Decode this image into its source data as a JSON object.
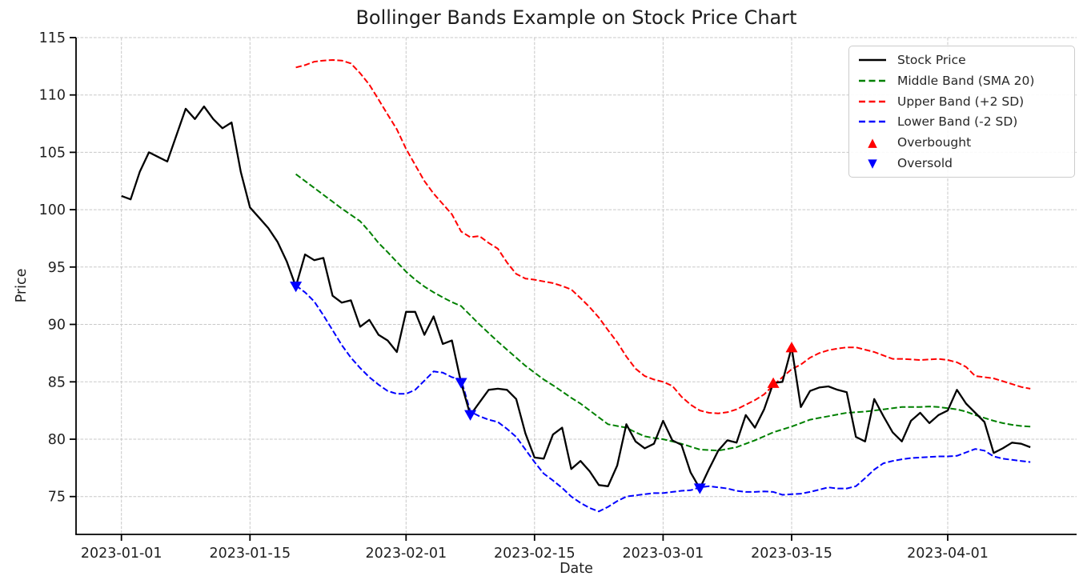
{
  "title": "Bollinger Bands Example on Stock Price Chart",
  "axes": {
    "x_label": "Date",
    "y_label": "Price",
    "y_ticks": [
      75,
      80,
      85,
      90,
      95,
      100,
      105,
      110,
      115
    ],
    "x_ticks": [
      {
        "day": 0,
        "label": "2023-01-01"
      },
      {
        "day": 14,
        "label": "2023-01-15"
      },
      {
        "day": 31,
        "label": "2023-02-01"
      },
      {
        "day": 45,
        "label": "2023-02-15"
      },
      {
        "day": 59,
        "label": "2023-03-01"
      },
      {
        "day": 73,
        "label": "2023-03-15"
      },
      {
        "day": 90,
        "label": "2023-04-01"
      }
    ]
  },
  "colors": {
    "stock": "#000000",
    "middle_band": "#008000",
    "upper_band": "#ff0000",
    "lower_band": "#0000ff",
    "overbought_marker": "#ff0000",
    "oversold_marker": "#0000ff",
    "grid": "#c8c8c8",
    "spine": "#000000",
    "text": "#1f1f1f"
  },
  "legend": {
    "items": [
      {
        "label": "Stock Price",
        "type": "line-solid",
        "color": "#000000"
      },
      {
        "label": "Middle Band (SMA 20)",
        "type": "line-dashed",
        "color": "#008000"
      },
      {
        "label": "Upper Band (+2 SD)",
        "type": "line-dashed",
        "color": "#ff0000"
      },
      {
        "label": "Lower Band (-2 SD)",
        "type": "line-dashed",
        "color": "#0000ff"
      },
      {
        "label": "Overbought",
        "type": "triangle-up",
        "color": "#ff0000"
      },
      {
        "label": "Oversold",
        "type": "triangle-down",
        "color": "#0000ff"
      }
    ],
    "glyphs": {
      "triangle_up": "▲",
      "triangle_down": "▼"
    }
  },
  "chart_data": {
    "type": "line",
    "title": "Bollinger Bands Example on Stock Price Chart",
    "xlabel": "Date",
    "ylabel": "Price",
    "ylim": [
      71.7,
      115.0
    ],
    "grid": true,
    "legend_position": "upper right",
    "x_tick_labels": [
      "2023-01-01",
      "2023-01-15",
      "2023-02-01",
      "2023-02-15",
      "2023-03-01",
      "2023-03-15",
      "2023-04-01"
    ],
    "dates": [
      "2023-01-01",
      "2023-01-02",
      "2023-01-03",
      "2023-01-04",
      "2023-01-05",
      "2023-01-06",
      "2023-01-07",
      "2023-01-08",
      "2023-01-09",
      "2023-01-10",
      "2023-01-11",
      "2023-01-12",
      "2023-01-13",
      "2023-01-14",
      "2023-01-15",
      "2023-01-16",
      "2023-01-17",
      "2023-01-18",
      "2023-01-19",
      "2023-01-20",
      "2023-01-21",
      "2023-01-22",
      "2023-01-23",
      "2023-01-24",
      "2023-01-25",
      "2023-01-26",
      "2023-01-27",
      "2023-01-28",
      "2023-01-29",
      "2023-01-30",
      "2023-01-31",
      "2023-02-01",
      "2023-02-02",
      "2023-02-03",
      "2023-02-04",
      "2023-02-05",
      "2023-02-06",
      "2023-02-07",
      "2023-02-08",
      "2023-02-09",
      "2023-02-10",
      "2023-02-11",
      "2023-02-12",
      "2023-02-13",
      "2023-02-14",
      "2023-02-15",
      "2023-02-16",
      "2023-02-17",
      "2023-02-18",
      "2023-02-19",
      "2023-02-20",
      "2023-02-21",
      "2023-02-22",
      "2023-02-23",
      "2023-02-24",
      "2023-02-25",
      "2023-02-26",
      "2023-02-27",
      "2023-02-28",
      "2023-03-01",
      "2023-03-02",
      "2023-03-03",
      "2023-03-04",
      "2023-03-05",
      "2023-03-06",
      "2023-03-07",
      "2023-03-08",
      "2023-03-09",
      "2023-03-10",
      "2023-03-11",
      "2023-03-12",
      "2023-03-13",
      "2023-03-14",
      "2023-03-15",
      "2023-03-16",
      "2023-03-17",
      "2023-03-18",
      "2023-03-19",
      "2023-03-20",
      "2023-03-21",
      "2023-03-22",
      "2023-03-23",
      "2023-03-24",
      "2023-03-25",
      "2023-03-26",
      "2023-03-27",
      "2023-03-28",
      "2023-03-29",
      "2023-03-30",
      "2023-03-31",
      "2023-04-01",
      "2023-04-02",
      "2023-04-03",
      "2023-04-04",
      "2023-04-05",
      "2023-04-06",
      "2023-04-07",
      "2023-04-08",
      "2023-04-09",
      "2023-04-10"
    ],
    "series": [
      {
        "name": "Stock Price",
        "color": "#000000",
        "style": "solid",
        "linewidth": 2.3,
        "start_day": 0,
        "values": [
          101.2,
          100.9,
          103.3,
          105.0,
          104.6,
          104.2,
          106.5,
          108.8,
          107.9,
          109.0,
          107.9,
          107.1,
          107.6,
          103.3,
          100.2,
          99.3,
          98.4,
          97.2,
          95.5,
          93.3,
          96.1,
          95.6,
          95.8,
          92.5,
          91.9,
          92.1,
          89.8,
          90.4,
          89.1,
          88.6,
          87.6,
          91.1,
          91.1,
          89.1,
          90.7,
          88.3,
          88.6,
          84.9,
          82.1,
          83.2,
          84.3,
          84.4,
          84.3,
          83.5,
          80.5,
          78.4,
          78.3,
          80.4,
          81.0,
          77.4,
          78.1,
          77.2,
          76.0,
          75.9,
          77.7,
          81.3,
          79.8,
          79.2,
          79.6,
          81.6,
          79.9,
          79.5,
          77.1,
          75.7,
          77.4,
          79.0,
          79.9,
          79.7,
          82.1,
          81.0,
          82.6,
          84.9,
          85.0,
          88.0,
          82.8,
          84.2,
          84.5,
          84.6,
          84.3,
          84.1,
          80.2,
          79.8,
          83.5,
          82.0,
          80.6,
          79.8,
          81.6,
          82.3,
          81.4,
          82.1,
          82.5,
          84.3,
          83.1,
          82.3,
          81.5,
          78.8,
          79.2,
          79.7,
          79.6,
          79.3
        ]
      },
      {
        "name": "Middle Band (SMA 20)",
        "color": "#008000",
        "style": "dashed",
        "linewidth": 2,
        "start_day": 19,
        "values": [
          103.1,
          102.5,
          101.9,
          101.3,
          100.7,
          100.1,
          99.55,
          99.0,
          98.1,
          97.1,
          96.3,
          95.45,
          94.6,
          93.9,
          93.3,
          92.8,
          92.35,
          91.95,
          91.6,
          90.8,
          90.0,
          89.25,
          88.5,
          87.8,
          87.1,
          86.4,
          85.8,
          85.2,
          84.7,
          84.15,
          83.6,
          83.1,
          82.5,
          81.9,
          81.3,
          81.15,
          81.0,
          80.6,
          80.25,
          80.1,
          80.0,
          79.8,
          79.6,
          79.35,
          79.1,
          79.05,
          79.0,
          79.15,
          79.3,
          79.6,
          79.9,
          80.25,
          80.6,
          80.85,
          81.1,
          81.4,
          81.7,
          81.85,
          82.0,
          82.15,
          82.3,
          82.35,
          82.4,
          82.5,
          82.6,
          82.7,
          82.8,
          82.8,
          82.8,
          82.85,
          82.8,
          82.7,
          82.6,
          82.4,
          82.1,
          81.85,
          81.6,
          81.4,
          81.25,
          81.15,
          81.1
        ]
      },
      {
        "name": "Upper Band (+2 SD)",
        "color": "#ff0000",
        "style": "dashed",
        "linewidth": 2,
        "start_day": 19,
        "values": [
          112.4,
          112.6,
          112.9,
          113.0,
          113.05,
          113.0,
          112.75,
          111.9,
          110.9,
          109.6,
          108.3,
          107.0,
          105.3,
          103.9,
          102.5,
          101.4,
          100.5,
          99.6,
          98.1,
          97.6,
          97.7,
          97.1,
          96.6,
          95.4,
          94.4,
          94.0,
          93.9,
          93.75,
          93.6,
          93.35,
          93.05,
          92.3,
          91.5,
          90.6,
          89.5,
          88.45,
          87.2,
          86.15,
          85.5,
          85.2,
          85.0,
          84.65,
          83.7,
          83.0,
          82.5,
          82.3,
          82.25,
          82.35,
          82.6,
          83.0,
          83.4,
          83.9,
          84.7,
          85.4,
          86.1,
          86.5,
          87.1,
          87.5,
          87.75,
          87.9,
          88.0,
          88.0,
          87.8,
          87.6,
          87.3,
          87.0,
          87.0,
          86.95,
          86.9,
          86.95,
          87.0,
          86.9,
          86.7,
          86.3,
          85.5,
          85.4,
          85.3,
          85.05,
          84.8,
          84.55,
          84.4
        ]
      },
      {
        "name": "Lower Band (-2 SD)",
        "color": "#0000ff",
        "style": "dashed",
        "linewidth": 2,
        "start_day": 19,
        "values": [
          93.4,
          92.8,
          92.0,
          90.8,
          89.5,
          88.2,
          87.1,
          86.2,
          85.4,
          84.75,
          84.2,
          83.95,
          83.95,
          84.3,
          85.1,
          85.9,
          85.8,
          85.4,
          85.2,
          82.4,
          82.0,
          81.7,
          81.5,
          80.9,
          80.2,
          79.1,
          78.0,
          77.0,
          76.4,
          75.75,
          75.0,
          74.45,
          74.0,
          73.7,
          74.1,
          74.6,
          75.0,
          75.1,
          75.2,
          75.3,
          75.3,
          75.4,
          75.5,
          75.55,
          75.8,
          75.9,
          75.8,
          75.7,
          75.5,
          75.4,
          75.4,
          75.45,
          75.4,
          75.15,
          75.2,
          75.25,
          75.4,
          75.6,
          75.8,
          75.7,
          75.7,
          75.9,
          76.6,
          77.35,
          77.9,
          78.1,
          78.25,
          78.35,
          78.4,
          78.45,
          78.5,
          78.5,
          78.55,
          78.85,
          79.15,
          79.0,
          78.5,
          78.3,
          78.2,
          78.1,
          78.0
        ]
      }
    ],
    "markers": {
      "overbought": [
        {
          "date": "2023-03-13",
          "day": 71,
          "price": 84.9
        },
        {
          "date": "2023-03-15",
          "day": 73,
          "price": 88.0
        }
      ],
      "oversold": [
        {
          "date": "2023-01-20",
          "day": 19,
          "price": 93.3
        },
        {
          "date": "2023-02-07",
          "day": 37,
          "price": 84.9
        },
        {
          "date": "2023-02-08",
          "day": 38,
          "price": 82.1
        },
        {
          "date": "2023-03-05",
          "day": 63,
          "price": 75.7
        }
      ]
    }
  }
}
